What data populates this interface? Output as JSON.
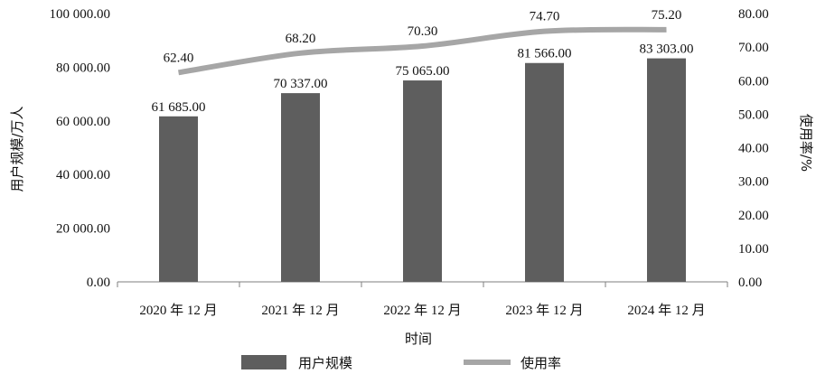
{
  "chart_data": {
    "type": "bar",
    "categories": [
      "2020 年 12 月",
      "2021 年 12 月",
      "2022 年 12 月",
      "2023 年 12 月",
      "2024 年 12 月"
    ],
    "series": [
      {
        "name": "用户规模",
        "type": "bar",
        "axis": "left",
        "values": [
          61685,
          70337,
          75065,
          81566,
          83303
        ],
        "labels": [
          "61 685.00",
          "70 337.00",
          "75 065.00",
          "81 566.00",
          "83 303.00"
        ],
        "color": "#5e5e5e"
      },
      {
        "name": "使用率",
        "type": "line",
        "axis": "right",
        "values": [
          62.4,
          68.2,
          70.3,
          74.7,
          75.2
        ],
        "labels": [
          "62.40",
          "68.20",
          "70.30",
          "74.70",
          "75.20"
        ],
        "color": "#a6a6a6"
      }
    ],
    "xlabel": "时间",
    "ylabel": "用户规模/万人",
    "y2label": "使用率/%",
    "ylim": [
      0,
      100000
    ],
    "y2lim": [
      0,
      80
    ],
    "yticks": [
      "0.00",
      "20 000.00",
      "40 000.00",
      "60 000.00",
      "80 000.00",
      "100 000.00"
    ],
    "y2ticks": [
      "0.00",
      "10.00",
      "20.00",
      "30.00",
      "40.00",
      "50.00",
      "60.00",
      "70.00",
      "80.00"
    ],
    "grid": false,
    "legend": "bottom-center"
  }
}
